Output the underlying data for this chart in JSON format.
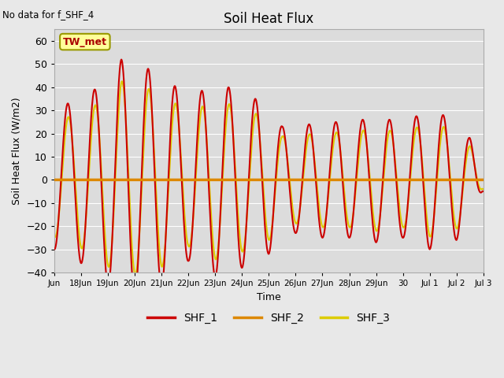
{
  "title": "Soil Heat Flux",
  "no_data_text": "No data for f_SHF_4",
  "ylabel": "Soil Heat Flux (W/m2)",
  "xlabel": "Time",
  "ylim": [
    -40,
    65
  ],
  "yticks": [
    -40,
    -30,
    -20,
    -10,
    0,
    10,
    20,
    30,
    40,
    50,
    60
  ],
  "bg_color": "#e8e8e8",
  "plot_bg_color": "#dcdcdc",
  "shf1_color": "#cc0000",
  "shf2_color": "#dd8800",
  "shf3_color": "#ddcc00",
  "legend_box_color": "#ffff99",
  "legend_box_edge": "#999900",
  "tw_met_text": "TW_met",
  "legend_entries": [
    "SHF_1",
    "SHF_2",
    "SHF_3"
  ],
  "xlim": [
    17,
    33
  ],
  "tick_positions": [
    17,
    18,
    19,
    20,
    21,
    22,
    23,
    24,
    25,
    26,
    27,
    28,
    29,
    30,
    31,
    32,
    33
  ],
  "tick_labels": [
    "Jun",
    "18Jun",
    "19Jun",
    "20Jun",
    "21Jun",
    "22Jun",
    "23Jun",
    "24Jun",
    "25Jun",
    "26Jun",
    "27Jun",
    "28Jun",
    "29Jun",
    "30",
    "Jul 1",
    "Jul 2",
    "Jul 3"
  ]
}
